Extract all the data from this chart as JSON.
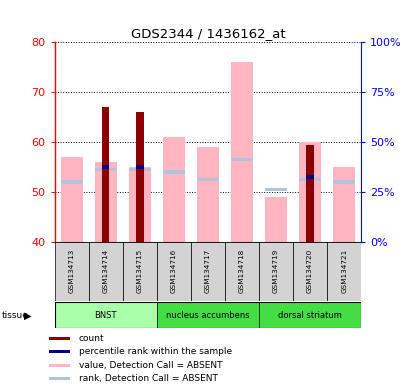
{
  "title": "GDS2344 / 1436162_at",
  "samples": [
    "GSM134713",
    "GSM134714",
    "GSM134715",
    "GSM134716",
    "GSM134717",
    "GSM134718",
    "GSM134719",
    "GSM134720",
    "GSM134721"
  ],
  "ylim_left": [
    40,
    80
  ],
  "ylim_right": [
    0,
    100
  ],
  "yticks_left": [
    40,
    50,
    60,
    70,
    80
  ],
  "yticks_right": [
    0,
    25,
    50,
    75,
    100
  ],
  "ytick_labels_right": [
    "0%",
    "25%",
    "50%",
    "75%",
    "100%"
  ],
  "value_absent": [
    57,
    56,
    55,
    61,
    59,
    76,
    49,
    60,
    55
  ],
  "rank_absent": [
    52,
    54.5,
    54.5,
    54,
    52.5,
    56.5,
    50.5,
    52.5,
    52
  ],
  "count": [
    0,
    67,
    66,
    0,
    0,
    0,
    0,
    59.5,
    0
  ],
  "percentile_rank": [
    0,
    55,
    55,
    0,
    0,
    0,
    0,
    53,
    0
  ],
  "has_count": [
    false,
    true,
    true,
    false,
    false,
    false,
    false,
    true,
    false
  ],
  "has_percentile": [
    false,
    true,
    true,
    false,
    false,
    false,
    false,
    true,
    false
  ],
  "color_count": "#8B0000",
  "color_percentile": "#00008B",
  "color_value_absent": "#FFB6C1",
  "color_rank_absent": "#B0C4DE",
  "tissue_labels": [
    "BNST",
    "nucleus accumbens",
    "dorsal striatum"
  ],
  "tissue_starts": [
    0,
    3,
    6
  ],
  "tissue_ends": [
    3,
    6,
    9
  ],
  "tissue_colors": [
    "#aaffaa",
    "#44dd44",
    "#44dd44"
  ],
  "legend_items": [
    {
      "color": "#8B0000",
      "label": "count"
    },
    {
      "color": "#00008B",
      "label": "percentile rank within the sample"
    },
    {
      "color": "#FFB6C1",
      "label": "value, Detection Call = ABSENT"
    },
    {
      "color": "#B0C4DE",
      "label": "rank, Detection Call = ABSENT"
    }
  ],
  "background_color": "#ffffff"
}
